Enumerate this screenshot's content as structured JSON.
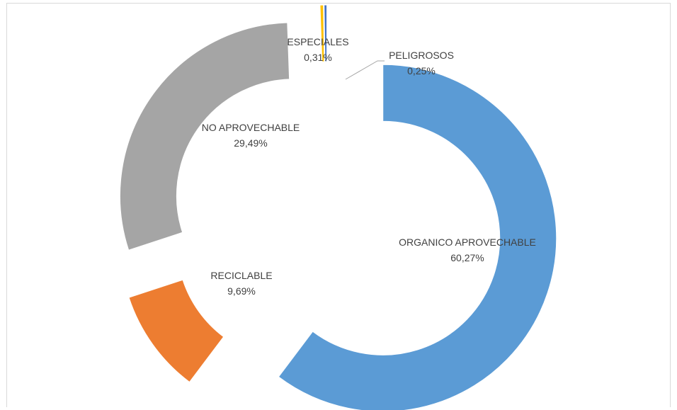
{
  "chart_data": {
    "type": "pie",
    "variant": "doughnut-exploded",
    "title": "",
    "slices": [
      {
        "label": "ORGANICO APROVECHABLE",
        "value_text": "60,27%",
        "value": 60.27,
        "color": "#5b9bd5"
      },
      {
        "label": "RECICLABLE",
        "value_text": "9,69%",
        "value": 9.69,
        "color": "#ed7d31"
      },
      {
        "label": "NO APROVECHABLE",
        "value_text": "29,49%",
        "value": 29.49,
        "color": "#a5a5a5"
      },
      {
        "label": "ESPECIALES",
        "value_text": "0,31%",
        "value": 0.31,
        "color": "#ffc000"
      },
      {
        "label": "PELIGROSOS",
        "value_text": "0,25%",
        "value": 0.25,
        "color": "#4472c4"
      }
    ],
    "leader_line_color": "#a6a6a6",
    "legend": "none"
  }
}
